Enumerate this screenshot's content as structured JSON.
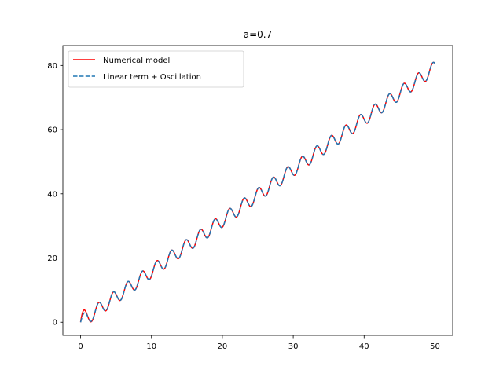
{
  "chart_data": {
    "type": "line",
    "title": "a=0.7",
    "xlabel": "",
    "ylabel": "",
    "xlim": [
      -2.5,
      52.5
    ],
    "ylim": [
      -4.1,
      86.2
    ],
    "x_ticks": [
      0,
      10,
      20,
      30,
      40,
      50
    ],
    "y_ticks": [
      0,
      20,
      40,
      60,
      80
    ],
    "x_tick_labels": [
      "0",
      "10",
      "20",
      "30",
      "40",
      "50"
    ],
    "y_tick_labels": [
      "0",
      "20",
      "40",
      "60",
      "80"
    ],
    "legend_position": "upper-left",
    "grid": false,
    "model": {
      "slope": 1.585,
      "oscillation_amplitude": 2.1,
      "oscillation_period": 2.05,
      "x_start": 0,
      "x_end": 50
    },
    "series": [
      {
        "name": "Numerical model",
        "style": "solid",
        "color": "#ff0000"
      },
      {
        "name": "Linear term + Oscillation",
        "style": "dashed",
        "color": "#1f77b4"
      }
    ]
  }
}
